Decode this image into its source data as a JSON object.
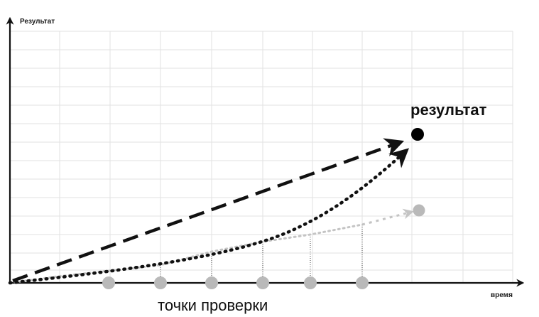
{
  "labels": {
    "y_axis": "Результат",
    "x_axis": "время",
    "result": "результат",
    "checkpoints": "точки проверки"
  },
  "colors": {
    "grid": "#e2e2e2",
    "axis": "#111111",
    "dashed_arrow": "#111111",
    "dotted_curve": "#111111",
    "light_path": "#c4c4c4",
    "checkpoint_dot": "#b9b9b9",
    "result_dot": "#000000"
  },
  "checkpoints_count": 6
}
